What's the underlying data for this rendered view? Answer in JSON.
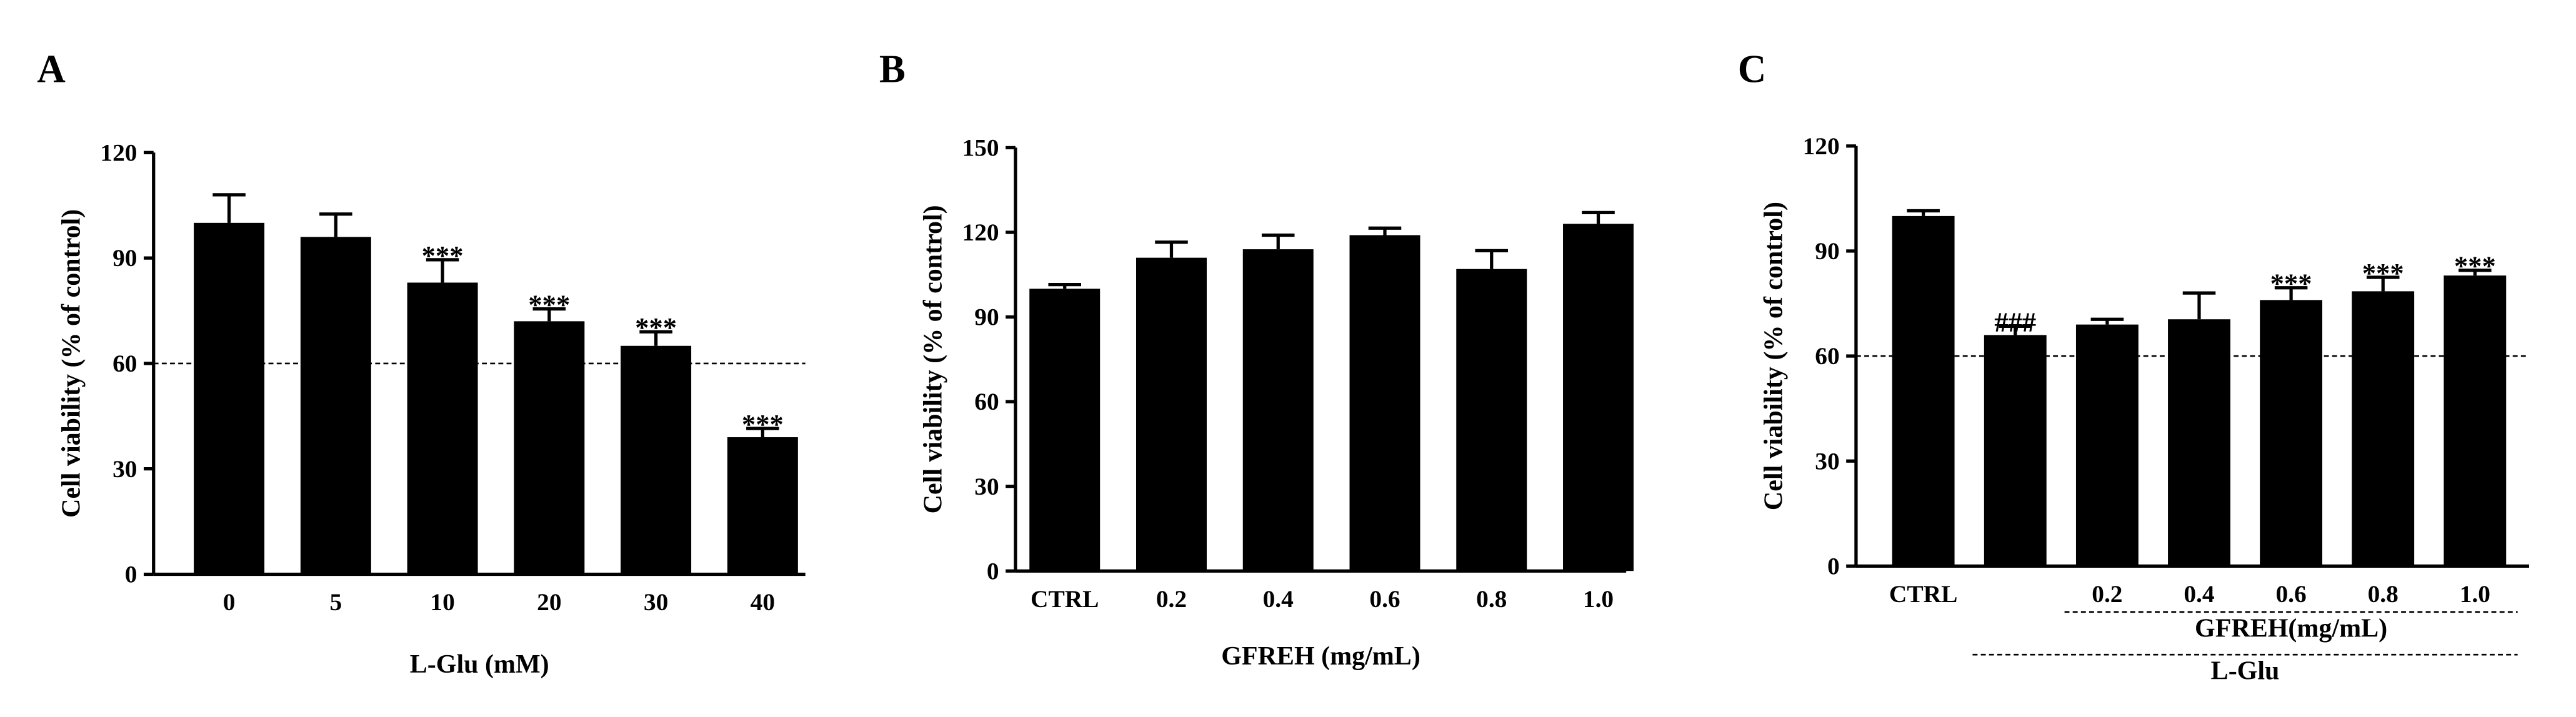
{
  "chart_data": [
    {
      "type": "bar",
      "panel": "A",
      "xlabel": "L-Glu (mM)",
      "ylabel": "Cell viability (% of control)",
      "categories": [
        "0",
        "5",
        "10",
        "20",
        "30",
        "40"
      ],
      "values": [
        100,
        96,
        83,
        72,
        65,
        39
      ],
      "errors": [
        8,
        6.5,
        6.5,
        3.5,
        4,
        2.5
      ],
      "annotations": [
        null,
        null,
        "***",
        "***",
        "***",
        "***"
      ],
      "color": "#000000",
      "ylim": [
        0,
        120
      ],
      "yticks": [
        0,
        30,
        60,
        90,
        120
      ],
      "ref_line": 60
    },
    {
      "type": "bar",
      "panel": "B",
      "xlabel": "GFREH (mg/mL)",
      "ylabel": "Cell viability (% of control)",
      "categories": [
        "CTRL",
        "0.2",
        "0.4",
        "0.6",
        "0.8",
        "1.0"
      ],
      "values": [
        100,
        111,
        114,
        119,
        107,
        123
      ],
      "errors": [
        1.5,
        5.5,
        5,
        2.5,
        6.5,
        4
      ],
      "color": "#000000",
      "ylim": [
        0,
        150
      ],
      "yticks": [
        0,
        30,
        60,
        90,
        120,
        150
      ]
    },
    {
      "type": "bar",
      "panel": "C",
      "ylabel": "Cell viability (% of control)",
      "categories": [
        "CTRL",
        null,
        "0.2",
        "0.4",
        "0.6",
        "0.8",
        "1.0"
      ],
      "values": [
        100,
        66,
        69,
        70.5,
        76,
        78.5,
        83
      ],
      "errors": [
        1.5,
        2.5,
        1.5,
        7.5,
        3.5,
        4,
        1.5
      ],
      "annotations": [
        null,
        "###",
        null,
        null,
        "***",
        "***",
        "***"
      ],
      "groups": [
        {
          "label": "GFREH(mg/mL)",
          "from": 2,
          "to": 6
        },
        {
          "label": "L-Glu",
          "from": 1,
          "to": 6
        }
      ],
      "color": "#000000",
      "ylim": [
        0,
        120
      ],
      "yticks": [
        0,
        30,
        60,
        90,
        120
      ],
      "ref_line": 60
    }
  ]
}
